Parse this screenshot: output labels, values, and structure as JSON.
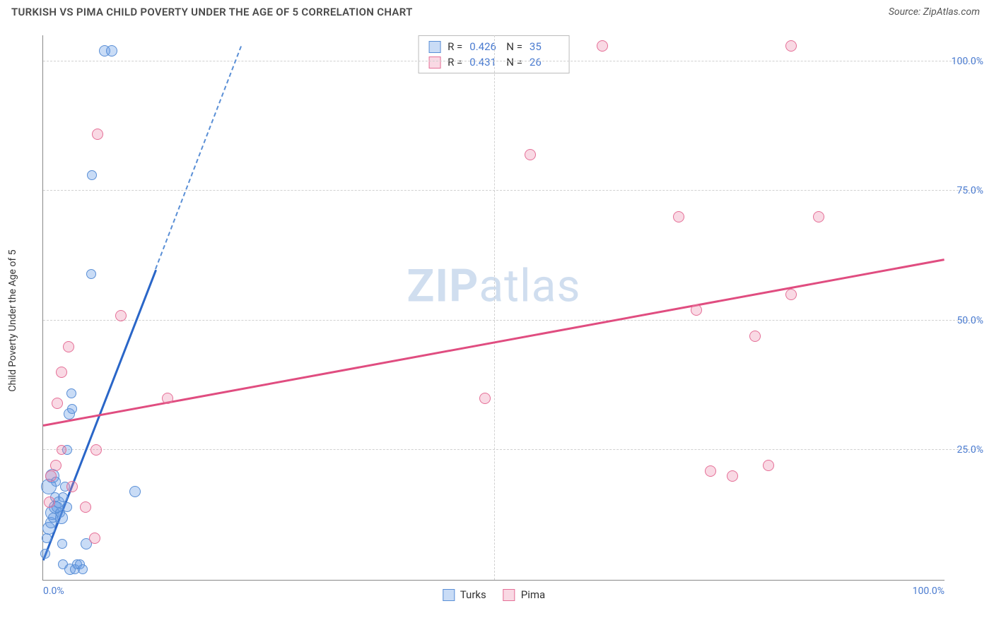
{
  "title": "TURKISH VS PIMA CHILD POVERTY UNDER THE AGE OF 5 CORRELATION CHART",
  "source_label": "Source: ",
  "source_name": "ZipAtlas.com",
  "ylabel": "Child Poverty Under the Age of 5",
  "watermark_a": "ZIP",
  "watermark_b": "atlas",
  "chart": {
    "type": "scatter",
    "xlim": [
      0,
      100
    ],
    "ylim": [
      0,
      105
    ],
    "xticks": [
      {
        "pos": 0,
        "label": "0.0%",
        "align": "left"
      },
      {
        "pos": 50,
        "label": "",
        "align": "center"
      },
      {
        "pos": 100,
        "label": "100.0%",
        "align": "right"
      }
    ],
    "yticks": [
      {
        "pos": 25,
        "label": "25.0%"
      },
      {
        "pos": 50,
        "label": "50.0%"
      },
      {
        "pos": 75,
        "label": "75.0%"
      },
      {
        "pos": 100,
        "label": "100.0%"
      }
    ],
    "series": [
      {
        "name": "Turks",
        "color_fill": "rgba(100,155,230,0.35)",
        "color_stroke": "#5a8fd6",
        "r_label": "R =",
        "r_value": "0.426",
        "n_label": "N =",
        "n_value": "35",
        "trend": {
          "x1": 0,
          "y1": 4,
          "x2": 12.5,
          "y2": 60,
          "color": "#2a66c8"
        },
        "trend_ext": {
          "x1": 12.5,
          "y1": 60,
          "x2": 22,
          "y2": 103,
          "color": "#5a8fd6"
        },
        "points": [
          {
            "x": 0.2,
            "y": 5,
            "r": 7
          },
          {
            "x": 0.4,
            "y": 8,
            "r": 7
          },
          {
            "x": 0.6,
            "y": 10,
            "r": 9
          },
          {
            "x": 0.9,
            "y": 11,
            "r": 8
          },
          {
            "x": 1.0,
            "y": 13,
            "r": 10
          },
          {
            "x": 1.1,
            "y": 12,
            "r": 7
          },
          {
            "x": 1.3,
            "y": 14,
            "r": 9
          },
          {
            "x": 1.3,
            "y": 16,
            "r": 7
          },
          {
            "x": 1.6,
            "y": 14,
            "r": 8
          },
          {
            "x": 1.7,
            "y": 15,
            "r": 8
          },
          {
            "x": 1.9,
            "y": 13,
            "r": 7
          },
          {
            "x": 2.0,
            "y": 12,
            "r": 9
          },
          {
            "x": 2.1,
            "y": 7,
            "r": 7
          },
          {
            "x": 2.2,
            "y": 3,
            "r": 7
          },
          {
            "x": 2.2,
            "y": 16,
            "r": 7
          },
          {
            "x": 2.4,
            "y": 18,
            "r": 7
          },
          {
            "x": 2.7,
            "y": 14,
            "r": 7
          },
          {
            "x": 2.7,
            "y": 25,
            "r": 7
          },
          {
            "x": 3.0,
            "y": 2,
            "r": 8
          },
          {
            "x": 3.5,
            "y": 2,
            "r": 7
          },
          {
            "x": 3.8,
            "y": 3,
            "r": 7
          },
          {
            "x": 4.1,
            "y": 3,
            "r": 7
          },
          {
            "x": 4.4,
            "y": 2,
            "r": 7
          },
          {
            "x": 2.9,
            "y": 32,
            "r": 8
          },
          {
            "x": 3.2,
            "y": 33,
            "r": 7
          },
          {
            "x": 3.1,
            "y": 36,
            "r": 7
          },
          {
            "x": 4.8,
            "y": 7,
            "r": 8
          },
          {
            "x": 5.3,
            "y": 59,
            "r": 7
          },
          {
            "x": 5.4,
            "y": 78,
            "r": 7
          },
          {
            "x": 6.8,
            "y": 102,
            "r": 8
          },
          {
            "x": 7.6,
            "y": 102,
            "r": 8
          },
          {
            "x": 10.2,
            "y": 17,
            "r": 8
          },
          {
            "x": 1.0,
            "y": 20,
            "r": 10
          },
          {
            "x": 1.4,
            "y": 19,
            "r": 7
          },
          {
            "x": 0.6,
            "y": 18,
            "r": 11
          }
        ]
      },
      {
        "name": "Pima",
        "color_fill": "rgba(235,130,165,0.30)",
        "color_stroke": "#e56f97",
        "r_label": "R =",
        "r_value": "0.431",
        "n_label": "N =",
        "n_value": "26",
        "trend": {
          "x1": 0,
          "y1": 30,
          "x2": 100,
          "y2": 62,
          "color": "#e04d80"
        },
        "points": [
          {
            "x": 0.7,
            "y": 15,
            "r": 8
          },
          {
            "x": 0.9,
            "y": 20,
            "r": 8
          },
          {
            "x": 1.4,
            "y": 22,
            "r": 8
          },
          {
            "x": 1.6,
            "y": 34,
            "r": 8
          },
          {
            "x": 2.0,
            "y": 40,
            "r": 8
          },
          {
            "x": 2.0,
            "y": 25,
            "r": 7
          },
          {
            "x": 2.8,
            "y": 45,
            "r": 8
          },
          {
            "x": 3.2,
            "y": 18,
            "r": 8
          },
          {
            "x": 4.7,
            "y": 14,
            "r": 8
          },
          {
            "x": 5.7,
            "y": 8,
            "r": 8
          },
          {
            "x": 5.9,
            "y": 25,
            "r": 8
          },
          {
            "x": 6.0,
            "y": 86,
            "r": 8
          },
          {
            "x": 8.6,
            "y": 51,
            "r": 8
          },
          {
            "x": 13.8,
            "y": 35,
            "r": 8
          },
          {
            "x": 49.0,
            "y": 35,
            "r": 8
          },
          {
            "x": 54.0,
            "y": 82,
            "r": 8
          },
          {
            "x": 62.0,
            "y": 103,
            "r": 8
          },
          {
            "x": 70.5,
            "y": 70,
            "r": 8
          },
          {
            "x": 72.5,
            "y": 52,
            "r": 8
          },
          {
            "x": 74.0,
            "y": 21,
            "r": 8
          },
          {
            "x": 76.5,
            "y": 20,
            "r": 8
          },
          {
            "x": 79.0,
            "y": 47,
            "r": 8
          },
          {
            "x": 80.5,
            "y": 22,
            "r": 8
          },
          {
            "x": 83.0,
            "y": 55,
            "r": 8
          },
          {
            "x": 83.0,
            "y": 103,
            "r": 8
          },
          {
            "x": 86.0,
            "y": 70,
            "r": 8
          }
        ]
      }
    ]
  }
}
